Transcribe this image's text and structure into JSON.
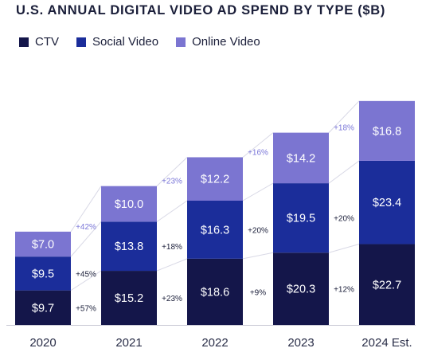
{
  "title": "U.S. ANNUAL DIGITAL VIDEO AD SPEND BY TYPE ($B)",
  "legend": [
    {
      "label": "CTV",
      "color": "#14164a"
    },
    {
      "label": "Social Video",
      "color": "#1b2d9a"
    },
    {
      "label": "Online Video",
      "color": "#7b75d1"
    }
  ],
  "chart_data": {
    "type": "bar",
    "stacked": true,
    "categories": [
      "2020",
      "2021",
      "2022",
      "2023",
      "2024 Est."
    ],
    "series": [
      {
        "name": "CTV",
        "values": [
          9.7,
          15.2,
          18.6,
          20.3,
          22.7
        ],
        "labels": [
          "$9.7",
          "$15.2",
          "$18.6",
          "$20.3",
          "$22.7"
        ],
        "color": "#14164a"
      },
      {
        "name": "Social Video",
        "values": [
          9.5,
          13.8,
          16.3,
          19.5,
          23.4
        ],
        "labels": [
          "$9.5",
          "$13.8",
          "$16.3",
          "$19.5",
          "$23.4"
        ],
        "color": "#1b2d9a"
      },
      {
        "name": "Online Video",
        "values": [
          7.0,
          10.0,
          12.2,
          14.2,
          16.8
        ],
        "labels": [
          "$7.0",
          "$10.0",
          "$12.2",
          "$14.2",
          "$16.8"
        ],
        "color": "#7b75d1"
      }
    ],
    "growth_labels": {
      "CTV": [
        "+57%",
        "+23%",
        "+9%",
        "+12%"
      ],
      "Social Video": [
        "+45%",
        "+18%",
        "+20%",
        "+20%"
      ],
      "Online Video": [
        "+42%",
        "+23%",
        "+16%",
        "+18%"
      ]
    },
    "title": "U.S. ANNUAL DIGITAL VIDEO AD SPEND BY TYPE ($B)",
    "xlabel": "",
    "ylabel": "",
    "ylim": [
      0,
      65
    ],
    "grid": false,
    "legend_position": "top-left"
  }
}
